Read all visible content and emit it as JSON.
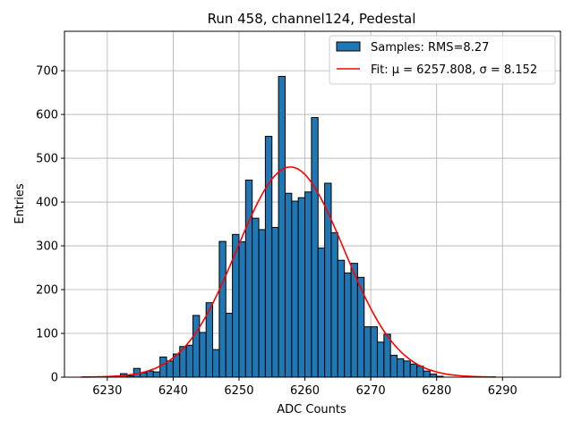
{
  "chart_data": {
    "type": "bar",
    "title": "Run 458, channel124, Pedestal",
    "xlabel": "ADC Counts",
    "ylabel": "Entries",
    "xlim": [
      6223.5,
      6298.8
    ],
    "ylim": [
      0,
      790
    ],
    "xticks": [
      6230,
      6240,
      6250,
      6260,
      6270,
      6280,
      6290
    ],
    "yticks": [
      0,
      100,
      200,
      300,
      400,
      500,
      600,
      700
    ],
    "grid": true,
    "legend_location": "top-right",
    "bin_width": 1,
    "bin_start": 6226,
    "series": [
      {
        "name": "Samples: RMS=8.27",
        "kind": "histogram",
        "color": "#1f77b4",
        "edgecolor": "#000000",
        "values": [
          0,
          0,
          0,
          0,
          0,
          2,
          8,
          3,
          20,
          10,
          14,
          12,
          46,
          37,
          53,
          70,
          73,
          141,
          102,
          170,
          63,
          310,
          146,
          326,
          309,
          450,
          363,
          337,
          550,
          342,
          687,
          420,
          402,
          410,
          423,
          593,
          295,
          443,
          330,
          267,
          238,
          260,
          228,
          115,
          115,
          80,
          98,
          50,
          42,
          37,
          30,
          25,
          14,
          7,
          2,
          0,
          0,
          0,
          0,
          0,
          0,
          0,
          0,
          0,
          0,
          0,
          0,
          0,
          0,
          0
        ]
      },
      {
        "name": "Fit: μ = 6257.808, σ = 8.152",
        "kind": "gaussian-fit",
        "color": "#ff0000",
        "mu": 6257.808,
        "sigma": 8.152,
        "amplitude": 480,
        "x_range": [
          6226,
          6289
        ]
      }
    ]
  }
}
